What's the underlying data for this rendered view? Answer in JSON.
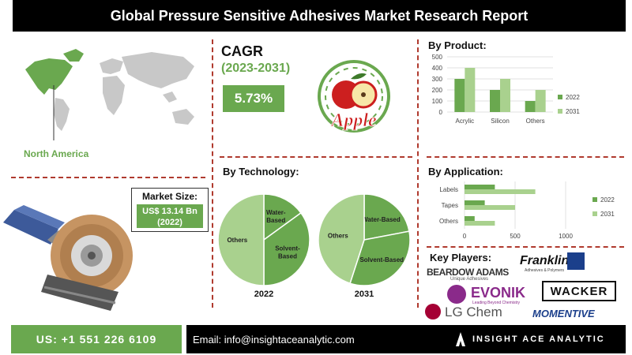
{
  "title": "Global Pressure Sensitive Adhesives Market Research Report",
  "region": {
    "label": "North America"
  },
  "cagr": {
    "heading": "CAGR",
    "period": "(2023-2031)",
    "value": "5.73%"
  },
  "apple_logo": {
    "text": "Apple"
  },
  "market_size": {
    "label": "Market Size:",
    "value_line1": "US$ 13.14 Bn",
    "value_line2": "(2022)"
  },
  "sections": {
    "by_product": "By Product:",
    "by_technology": "By Technology:",
    "by_application": "By Application:",
    "key_players": "Key Players:"
  },
  "colors": {
    "dark_green": "#6aa84f",
    "light_green": "#a9d18e",
    "divider": "#b03a2e",
    "black": "#000000"
  },
  "chart_data": [
    {
      "type": "bar",
      "section": "By Product",
      "categories": [
        "Acrylic",
        "Silicon",
        "Others"
      ],
      "series": [
        {
          "name": "2022",
          "values": [
            300,
            200,
            100
          ],
          "color": "#6aa84f"
        },
        {
          "name": "2031",
          "values": [
            400,
            300,
            200
          ],
          "color": "#a9d18e"
        }
      ],
      "ylim": [
        0,
        500
      ],
      "yticks": [
        "0",
        "100",
        "200",
        "300",
        "400",
        "500"
      ],
      "grid": true,
      "legend": "right"
    },
    {
      "type": "pie",
      "section": "By Technology",
      "label": "2022",
      "slices": [
        {
          "label": "Water-Based",
          "value": 15,
          "color": "#6aa84f"
        },
        {
          "label": "Solvent-Based",
          "value": 35,
          "color": "#6aa84f"
        },
        {
          "label": "Others",
          "value": 50,
          "color": "#a9d18e"
        }
      ]
    },
    {
      "type": "pie",
      "section": "By Technology",
      "label": "2031",
      "slices": [
        {
          "label": "Water-Based",
          "value": 22,
          "color": "#6aa84f"
        },
        {
          "label": "Solvent-Based",
          "value": 33,
          "color": "#6aa84f"
        },
        {
          "label": "Others",
          "value": 45,
          "color": "#a9d18e"
        }
      ]
    },
    {
      "type": "bar",
      "orientation": "horizontal",
      "section": "By Application",
      "categories": [
        "Labels",
        "Tapes",
        "Others"
      ],
      "series": [
        {
          "name": "2022",
          "values": [
            300,
            200,
            100
          ],
          "color": "#6aa84f"
        },
        {
          "name": "2031",
          "values": [
            700,
            500,
            300
          ],
          "color": "#a9d18e"
        }
      ],
      "xlim": [
        0,
        1000
      ],
      "xticks": [
        "0",
        "500",
        "1000"
      ],
      "grid": true,
      "legend": "right"
    }
  ],
  "key_players": [
    {
      "name": "BEARDOW ADAMS",
      "sub": "Unique Adhesives"
    },
    {
      "name": "Franklin",
      "sub": "Adhesives & Polymers"
    },
    {
      "name": "EVONIK",
      "sub": "Leading Beyond Chemistry"
    },
    {
      "name": "WACKER"
    },
    {
      "name": "LG Chem"
    },
    {
      "name": "MOMENTIVE"
    }
  ],
  "footer": {
    "phone": "US: +1 551 226 6109",
    "email": "Email: info@insightaceanalytic.com",
    "brand": "INSIGHT ACE ANALYTIC"
  }
}
